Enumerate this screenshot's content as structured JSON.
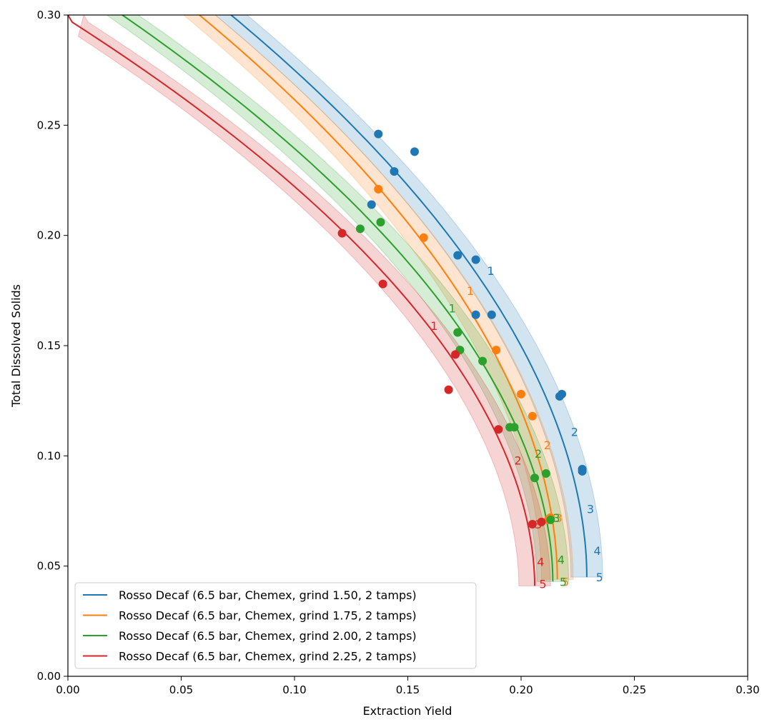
{
  "chart_data": {
    "type": "scatter",
    "title": "",
    "xlabel": "Extraction Yield",
    "ylabel": "Total Dissolved Solids",
    "xlim": [
      0.0,
      0.3
    ],
    "ylim": [
      0.0,
      0.3
    ],
    "x_ticks": [
      "0.00",
      "0.05",
      "0.10",
      "0.15",
      "0.20",
      "0.25",
      "0.30"
    ],
    "y_ticks": [
      "0.00",
      "0.05",
      "0.10",
      "0.15",
      "0.20",
      "0.25",
      "0.30"
    ],
    "grid": false,
    "legend_position": "lower-left",
    "series": [
      {
        "name": "Rosso Decaf (6.5 bar, Chemex, grind 1.50, 2 tamps)",
        "color": "#1f77b4",
        "curve_start": [
          0.072,
          0.3
        ],
        "curve_bend": 0.188,
        "curve_end": [
          0.229,
          0.045
        ],
        "band_halfwidth": 0.007,
        "ratio_labels": [
          {
            "text": "1",
            "x": 0.185,
            "y": 0.184
          },
          {
            "text": "2",
            "x": 0.222,
            "y": 0.111
          },
          {
            "text": "3",
            "x": 0.229,
            "y": 0.076
          },
          {
            "text": "4",
            "x": 0.232,
            "y": 0.057
          },
          {
            "text": "5",
            "x": 0.233,
            "y": 0.045
          }
        ],
        "points": [
          {
            "x": 0.137,
            "y": 0.246
          },
          {
            "x": 0.153,
            "y": 0.238
          },
          {
            "x": 0.144,
            "y": 0.229
          },
          {
            "x": 0.134,
            "y": 0.214
          },
          {
            "x": 0.172,
            "y": 0.191
          },
          {
            "x": 0.18,
            "y": 0.189
          },
          {
            "x": 0.18,
            "y": 0.164
          },
          {
            "x": 0.187,
            "y": 0.164
          },
          {
            "x": 0.218,
            "y": 0.128
          },
          {
            "x": 0.217,
            "y": 0.127
          },
          {
            "x": 0.227,
            "y": 0.094
          },
          {
            "x": 0.227,
            "y": 0.093
          }
        ]
      },
      {
        "name": "Rosso Decaf (6.5 bar, Chemex, grind 1.75, 2 tamps)",
        "color": "#ff7f0e",
        "curve_start": [
          0.058,
          0.3
        ],
        "curve_bend": 0.172,
        "curve_end": [
          0.216,
          0.044
        ],
        "band_halfwidth": 0.007,
        "ratio_labels": [
          {
            "text": "1",
            "x": 0.176,
            "y": 0.175
          },
          {
            "text": "2",
            "x": 0.21,
            "y": 0.105
          },
          {
            "text": "3",
            "x": 0.215,
            "y": 0.072
          },
          {
            "text": "4",
            "x": 0.216,
            "y": 0.053
          },
          {
            "text": "5",
            "x": 0.218,
            "y": 0.043
          }
        ],
        "points": [
          {
            "x": 0.137,
            "y": 0.221
          },
          {
            "x": 0.157,
            "y": 0.199
          },
          {
            "x": 0.189,
            "y": 0.148
          },
          {
            "x": 0.2,
            "y": 0.128
          },
          {
            "x": 0.205,
            "y": 0.118
          },
          {
            "x": 0.212,
            "y": 0.071
          },
          {
            "x": 0.213,
            "y": 0.072
          }
        ]
      },
      {
        "name": "Rosso Decaf (6.5 bar, Chemex, grind 2.00, 2 tamps)",
        "color": "#2ca02c",
        "curve_start": [
          0.024,
          0.3
        ],
        "curve_bend": 0.165,
        "curve_end": [
          0.214,
          0.043
        ],
        "band_halfwidth": 0.007,
        "ratio_labels": [
          {
            "text": "1",
            "x": 0.168,
            "y": 0.167
          },
          {
            "text": "2",
            "x": 0.206,
            "y": 0.101
          },
          {
            "text": "3",
            "x": 0.214,
            "y": 0.072
          },
          {
            "text": "4",
            "x": 0.216,
            "y": 0.053
          },
          {
            "text": "5",
            "x": 0.217,
            "y": 0.043
          }
        ],
        "points": [
          {
            "x": 0.129,
            "y": 0.203
          },
          {
            "x": 0.138,
            "y": 0.206
          },
          {
            "x": 0.172,
            "y": 0.156
          },
          {
            "x": 0.173,
            "y": 0.148
          },
          {
            "x": 0.183,
            "y": 0.143
          },
          {
            "x": 0.195,
            "y": 0.113
          },
          {
            "x": 0.197,
            "y": 0.113
          },
          {
            "x": 0.206,
            "y": 0.09
          },
          {
            "x": 0.211,
            "y": 0.092
          },
          {
            "x": 0.213,
            "y": 0.071
          }
        ]
      },
      {
        "name": "Rosso Decaf (6.5 bar, Chemex, grind 2.25, 2 tamps)",
        "color": "#d62728",
        "curve_start": [
          0.0,
          0.298
        ],
        "curve_bend": 0.157,
        "curve_end": [
          0.206,
          0.041
        ],
        "band_halfwidth": 0.007,
        "ratio_labels": [
          {
            "text": "1",
            "x": 0.16,
            "y": 0.159
          },
          {
            "text": "2",
            "x": 0.197,
            "y": 0.098
          },
          {
            "text": "3",
            "x": 0.206,
            "y": 0.069
          },
          {
            "text": "4",
            "x": 0.207,
            "y": 0.052
          },
          {
            "text": "5",
            "x": 0.208,
            "y": 0.042
          }
        ],
        "points": [
          {
            "x": 0.121,
            "y": 0.201
          },
          {
            "x": 0.139,
            "y": 0.178
          },
          {
            "x": 0.168,
            "y": 0.13
          },
          {
            "x": 0.171,
            "y": 0.146
          },
          {
            "x": 0.19,
            "y": 0.112
          },
          {
            "x": 0.205,
            "y": 0.069
          },
          {
            "x": 0.209,
            "y": 0.07
          }
        ]
      }
    ]
  }
}
